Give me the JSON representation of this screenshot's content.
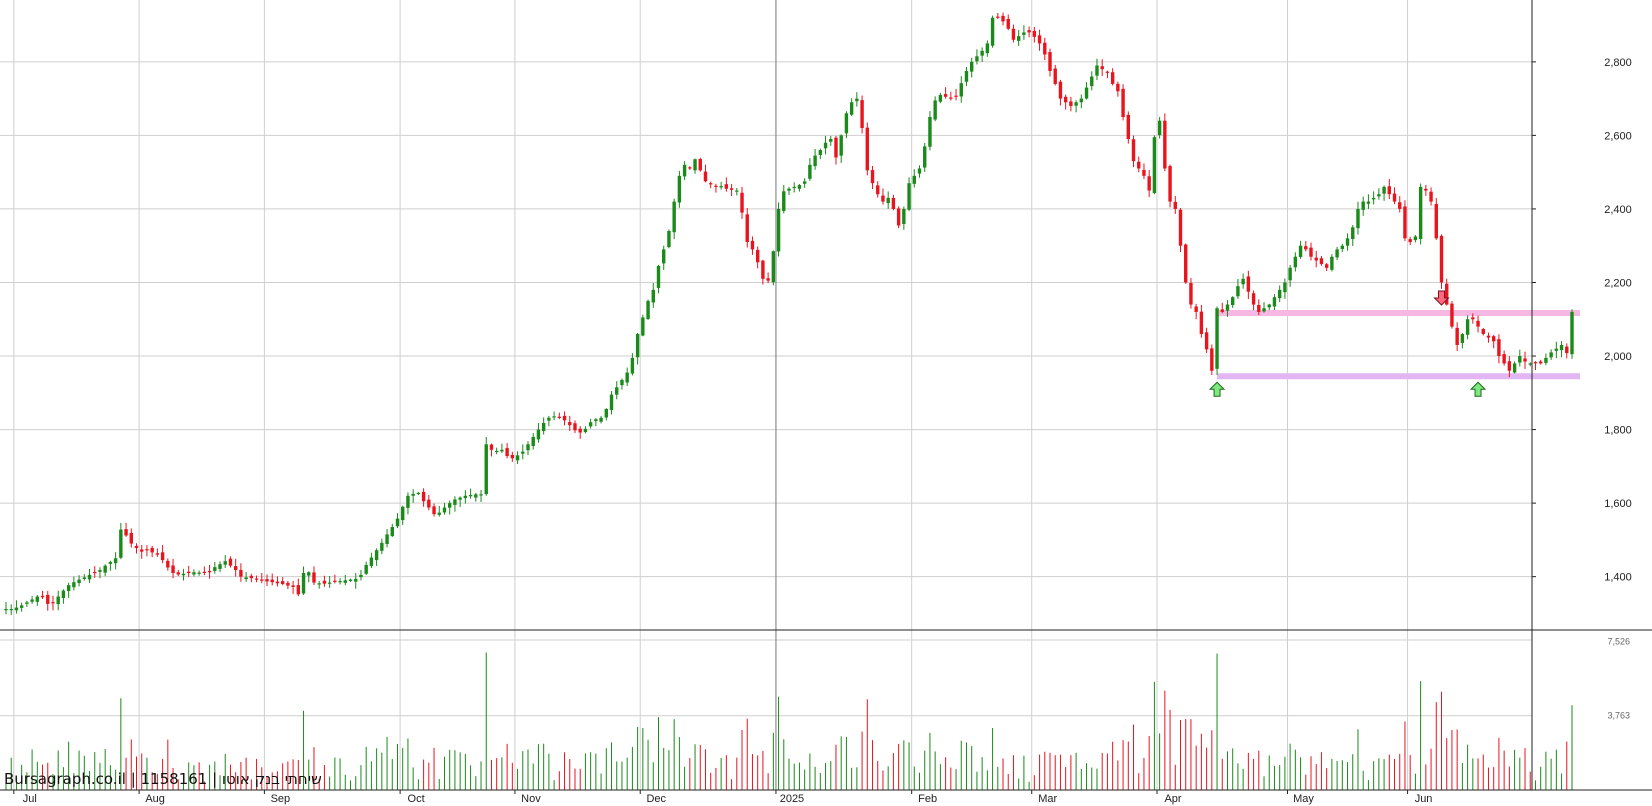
{
  "site": "Bursagraph.co.il",
  "security_id": "1158161",
  "security_name": "שיחתי בנק אוטו",
  "separator": " | ",
  "colors": {
    "up": "#1a8a1a",
    "down": "#e8141e",
    "grid": "#cfcfcf",
    "support": "#e2b6f2",
    "resistance": "#f6b8e2",
    "arrow_up": "#7ee87e",
    "arrow_down": "#ff6a80"
  },
  "chart_data": {
    "type": "candlestick",
    "price_axis": {
      "ticks": [
        1400,
        1600,
        1800,
        2000,
        2200,
        2400,
        2600,
        2800
      ],
      "tick_labels": [
        "1,400",
        "1,600",
        "1,800",
        "2,000",
        "2,200",
        "2,400",
        "2,600",
        "2,800"
      ],
      "range": [
        1255,
        2960
      ]
    },
    "volume_axis": {
      "ticks": [
        3763,
        7526
      ],
      "tick_labels": [
        "3,763",
        "7,526"
      ],
      "max": 7526
    },
    "months": [
      "Jul",
      "Aug",
      "Sep",
      "Oct",
      "Nov",
      "Dec",
      "2025",
      "Feb",
      "Mar",
      "Apr",
      "May",
      "Jun"
    ],
    "month_start_index": [
      2,
      26,
      50,
      76,
      98,
      122,
      148,
      174,
      197,
      221,
      246,
      269
    ],
    "horizontal_levels": [
      {
        "value": 2117,
        "from_index": 232,
        "kind": "resistance"
      },
      {
        "value": 1945,
        "from_index": 232,
        "kind": "support"
      }
    ],
    "signals": [
      {
        "index": 232,
        "kind": "buy"
      },
      {
        "index": 275,
        "kind": "sell"
      },
      {
        "index": 282,
        "kind": "buy"
      }
    ],
    "close": [
      1312,
      1312,
      1316,
      1322,
      1330,
      1338,
      1346,
      1344,
      1326,
      1328,
      1346,
      1362,
      1377,
      1385,
      1392,
      1398,
      1405,
      1410,
      1418,
      1430,
      1440,
      1450,
      1528,
      1512,
      1490,
      1478,
      1468,
      1472,
      1466,
      1460,
      1445,
      1425,
      1410,
      1406,
      1408,
      1410,
      1412,
      1411,
      1410,
      1412,
      1426,
      1434,
      1442,
      1430,
      1418,
      1400,
      1398,
      1396,
      1392,
      1390,
      1387,
      1385,
      1382,
      1380,
      1376,
      1372,
      1352,
      1410,
      1412,
      1384,
      1382,
      1381,
      1384,
      1386,
      1388,
      1390,
      1392,
      1394,
      1405,
      1432,
      1452,
      1472,
      1492,
      1515,
      1535,
      1558,
      1590,
      1620,
      1625,
      1628,
      1605,
      1588,
      1570,
      1574,
      1588,
      1600,
      1610,
      1615,
      1620,
      1622,
      1624,
      1624,
      1760,
      1745,
      1742,
      1745,
      1728,
      1722,
      1730,
      1740,
      1760,
      1780,
      1800,
      1818,
      1832,
      1836,
      1832,
      1825,
      1812,
      1798,
      1792,
      1802,
      1820,
      1828,
      1832,
      1856,
      1895,
      1915,
      1935,
      1955,
      1995,
      2060,
      2105,
      2150,
      2180,
      2245,
      2290,
      2340,
      2420,
      2490,
      2520,
      2510,
      2535,
      2505,
      2475,
      2468,
      2460,
      2462,
      2455,
      2452,
      2450,
      2390,
      2310,
      2290,
      2255,
      2210,
      2205,
      2285,
      2400,
      2448,
      2455,
      2460,
      2465,
      2475,
      2520,
      2545,
      2560,
      2580,
      2590,
      2540,
      2600,
      2660,
      2690,
      2700,
      2620,
      2505,
      2470,
      2440,
      2420,
      2430,
      2400,
      2355,
      2400,
      2470,
      2490,
      2510,
      2570,
      2650,
      2695,
      2710,
      2705,
      2700,
      2705,
      2742,
      2775,
      2800,
      2815,
      2830,
      2850,
      2920,
      2920,
      2910,
      2890,
      2860,
      2870,
      2880,
      2880,
      2868,
      2850,
      2820,
      2775,
      2740,
      2700,
      2690,
      2680,
      2690,
      2700,
      2730,
      2760,
      2790,
      2780,
      2770,
      2740,
      2720,
      2650,
      2590,
      2530,
      2510,
      2490,
      2450,
      2595,
      2640,
      2510,
      2420,
      2400,
      2300,
      2200,
      2140,
      2120,
      2060,
      2018,
      1960,
      2130,
      2120,
      2140,
      2160,
      2190,
      2210,
      2175,
      2140,
      2120,
      2130,
      2140,
      2160,
      2180,
      2200,
      2240,
      2270,
      2300,
      2290,
      2270,
      2260,
      2250,
      2240,
      2270,
      2290,
      2300,
      2320,
      2350,
      2400,
      2420,
      2420,
      2430,
      2440,
      2460,
      2440,
      2420,
      2400,
      2320,
      2310,
      2325,
      2460,
      2450,
      2420,
      2320,
      2200,
      2140,
      2080,
      2030,
      2060,
      2100,
      2100,
      2080,
      2060,
      2050,
      2040,
      2000,
      1980,
      1960,
      1980,
      2000,
      1985,
      1980,
      1980,
      1980,
      1995,
      2010,
      2020,
      2030,
      2008,
      2120
    ]
  }
}
